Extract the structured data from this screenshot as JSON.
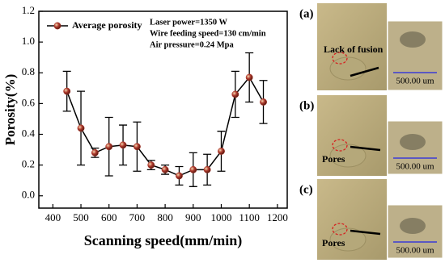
{
  "chart_data": {
    "type": "line",
    "y_label": "Porosity(%)",
    "x_label": "Scanning speed(mm/min)",
    "annotations": [
      "Laser power=1350 W",
      "Wire feeding speed=130 cm/min",
      "Air pressure=0.24 Mpa"
    ],
    "x": [
      450,
      500,
      550,
      600,
      650,
      700,
      750,
      800,
      850,
      900,
      950,
      1000,
      1050,
      1100,
      1150
    ],
    "series": [
      {
        "name": "Average porosity",
        "color": "#b03a2e",
        "values": [
          0.68,
          0.44,
          0.28,
          0.32,
          0.33,
          0.32,
          0.2,
          0.17,
          0.13,
          0.17,
          0.17,
          0.29,
          0.66,
          0.77,
          0.61
        ],
        "errors": [
          0.13,
          0.24,
          0.03,
          0.19,
          0.13,
          0.16,
          0.03,
          0.03,
          0.06,
          0.11,
          0.1,
          0.13,
          0.15,
          0.16,
          0.14
        ]
      }
    ],
    "xlim": [
      350,
      1235
    ],
    "ylim": [
      -0.08,
      1.2
    ],
    "xticks": [
      400,
      500,
      600,
      700,
      800,
      900,
      1000,
      1100,
      1200
    ],
    "yticks": [
      {
        "value": 0,
        "label": "0.0"
      },
      0.2,
      0.4,
      0.6,
      0.8,
      {
        "value": 1,
        "label": "1.0"
      },
      1.2
    ],
    "legend": "upper left"
  },
  "panels": [
    {
      "label": "(a)",
      "annotation": "Lack of fusion",
      "scale": "500.00 um"
    },
    {
      "label": "(b)",
      "annotation": "Pores",
      "scale": "500.00 um"
    },
    {
      "label": "(c)",
      "annotation": "Pores",
      "scale": "500.00 um"
    }
  ]
}
